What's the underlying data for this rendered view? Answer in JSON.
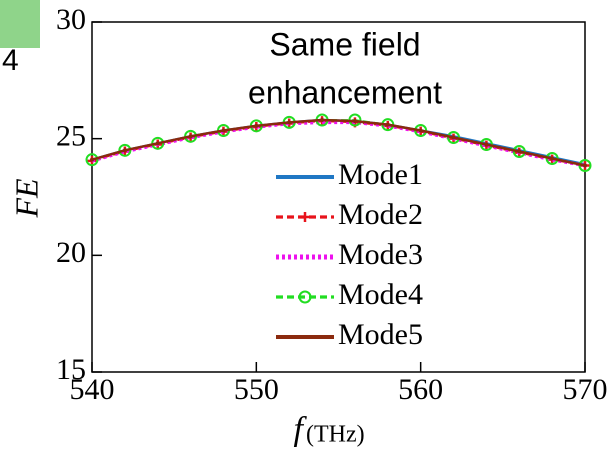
{
  "chart_data": {
    "type": "line",
    "annotation": [
      "Same field",
      "enhancement"
    ],
    "inset_label": "4",
    "xlabel": "f",
    "xlabel_unit": "(THz)",
    "ylabel": "FE",
    "x": [
      540,
      542,
      544,
      546,
      548,
      550,
      552,
      554,
      556,
      558,
      560,
      562,
      564,
      566,
      568,
      570
    ],
    "xlim": [
      540,
      570
    ],
    "xticks": [
      540,
      550,
      560,
      570
    ],
    "ylim": [
      15,
      30
    ],
    "yticks": [
      15,
      20,
      25,
      30
    ],
    "series": [
      {
        "name": "Mode1",
        "color": "#1f77c4",
        "linestyle": "solid",
        "marker": null,
        "values": [
          24.1,
          24.5,
          24.8,
          25.1,
          25.35,
          25.55,
          25.7,
          25.8,
          25.75,
          25.6,
          25.35,
          25.1,
          24.8,
          24.5,
          24.2,
          23.9
        ]
      },
      {
        "name": "Mode2",
        "color": "#e8131b",
        "linestyle": "dashed",
        "marker": "plus",
        "values": [
          24.05,
          24.45,
          24.75,
          25.05,
          25.3,
          25.5,
          25.65,
          25.75,
          25.7,
          25.55,
          25.3,
          25.0,
          24.7,
          24.4,
          24.1,
          23.85
        ]
      },
      {
        "name": "Mode3",
        "color": "#ee11ee",
        "linestyle": "dotted",
        "marker": null,
        "values": [
          24.05,
          24.45,
          24.75,
          25.05,
          25.3,
          25.5,
          25.65,
          25.7,
          25.7,
          25.55,
          25.3,
          25.0,
          24.7,
          24.4,
          24.1,
          23.85
        ]
      },
      {
        "name": "Mode4",
        "color": "#22dd22",
        "linestyle": "dashed",
        "marker": "circle",
        "values": [
          24.1,
          24.5,
          24.8,
          25.1,
          25.35,
          25.55,
          25.7,
          25.8,
          25.8,
          25.6,
          25.35,
          25.05,
          24.75,
          24.45,
          24.15,
          23.85
        ]
      },
      {
        "name": "Mode5",
        "color": "#8b2a0e",
        "linestyle": "solid",
        "marker": "dot",
        "values": [
          24.1,
          24.5,
          24.8,
          25.1,
          25.35,
          25.55,
          25.7,
          25.8,
          25.75,
          25.6,
          25.35,
          25.05,
          24.75,
          24.45,
          24.15,
          23.85
        ]
      }
    ]
  }
}
